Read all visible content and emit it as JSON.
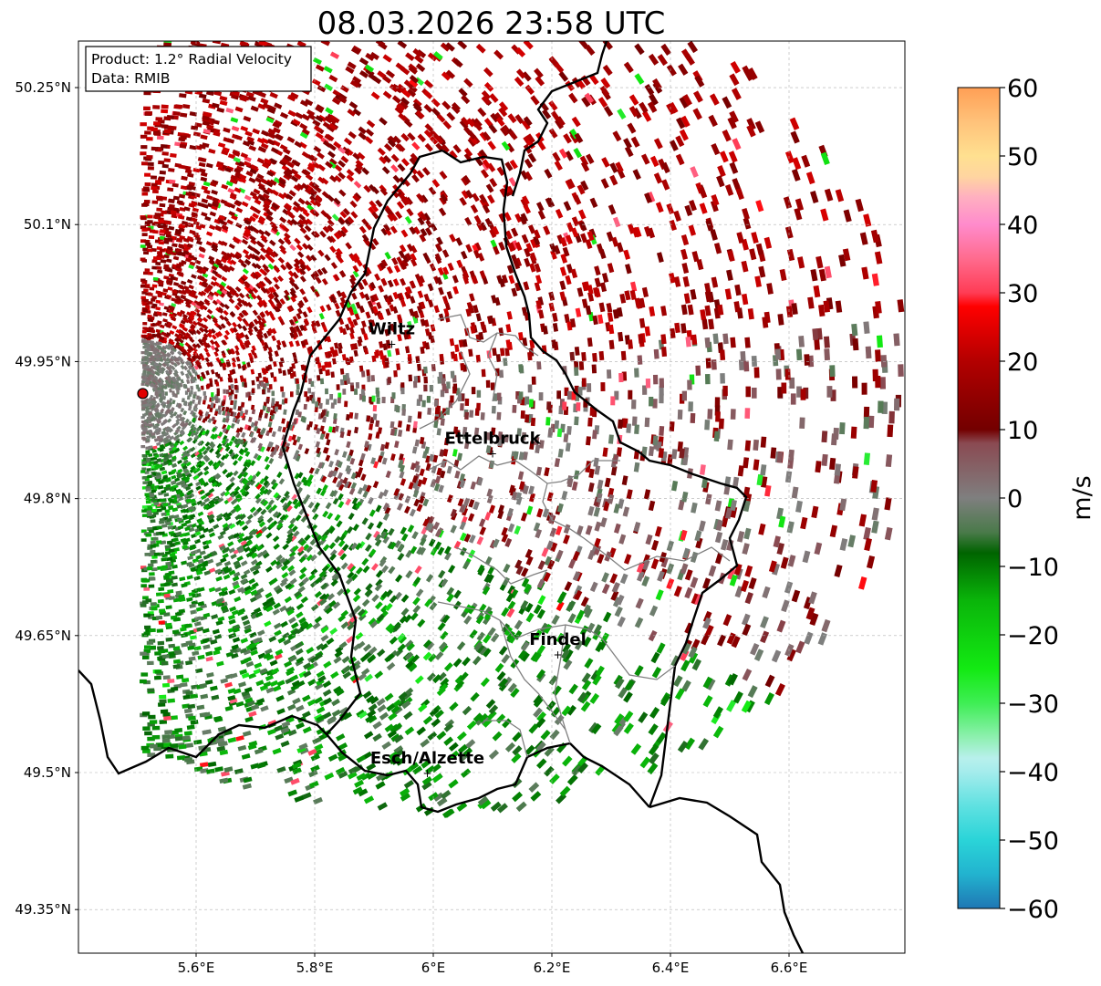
{
  "title": "08.03.2026 23:58 UTC",
  "info_box": {
    "product": "Product: 1.2° Radial Velocity",
    "data_source": "Data: RMIB"
  },
  "latitude_ticks": [
    "50.25°N",
    "50.1°N",
    "49.95°N",
    "49.8°N",
    "49.65°N",
    "49.5°N",
    "49.35°N"
  ],
  "longitude_ticks": [
    "5.6°E",
    "5.8°E",
    "6°E",
    "6.2°E",
    "6.4°E",
    "6.6°E"
  ],
  "cities": [
    {
      "name": "Wiltz",
      "lon": 5.93,
      "lat": 49.97
    },
    {
      "name": "Ettelbruck",
      "lon": 6.1,
      "lat": 49.85
    },
    {
      "name": "Findel",
      "lon": 6.21,
      "lat": 49.63
    },
    {
      "name": "Esch/Alzette",
      "lon": 5.99,
      "lat": 49.5
    }
  ],
  "radar_site": {
    "lon": 5.51,
    "lat": 49.915,
    "color": "#e00000"
  },
  "colorbar": {
    "unit": "m/s",
    "min": -60,
    "max": 60,
    "tick_labels": [
      "60",
      "50",
      "40",
      "30",
      "20",
      "10",
      "0",
      "−10",
      "−20",
      "−30",
      "−40",
      "−50",
      "−60"
    ],
    "stops": [
      {
        "value": -60,
        "color": "#1f77b4"
      },
      {
        "value": -55,
        "color": "#22b3cf"
      },
      {
        "value": -50,
        "color": "#2ad4d8"
      },
      {
        "value": -45,
        "color": "#5fe1e1"
      },
      {
        "value": -40,
        "color": "#a5ecec"
      },
      {
        "value": -38,
        "color": "#b8f0ec"
      },
      {
        "value": -35,
        "color": "#8ef0b0"
      },
      {
        "value": -30,
        "color": "#3fee55"
      },
      {
        "value": -25,
        "color": "#13ea13"
      },
      {
        "value": -15,
        "color": "#0ab50a"
      },
      {
        "value": -8,
        "color": "#006400"
      },
      {
        "value": -5,
        "color": "#4a7a4a"
      },
      {
        "value": 0,
        "color": "#7f7f7f"
      },
      {
        "value": 8,
        "color": "#8a4a52"
      },
      {
        "value": 10,
        "color": "#730000"
      },
      {
        "value": 20,
        "color": "#b30000"
      },
      {
        "value": 28,
        "color": "#ff0000"
      },
      {
        "value": 30,
        "color": "#ff3c55"
      },
      {
        "value": 35,
        "color": "#ff6b8e"
      },
      {
        "value": 40,
        "color": "#ff8bcc"
      },
      {
        "value": 44,
        "color": "#ffb0c0"
      },
      {
        "value": 47,
        "color": "#ffd5a0"
      },
      {
        "value": 50,
        "color": "#ffe090"
      },
      {
        "value": 55,
        "color": "#ffc27a"
      },
      {
        "value": 60,
        "color": "#ff9f55"
      }
    ]
  },
  "colors": {
    "border_national": "#000000",
    "border_canton": "#808080",
    "grid": "#b0b0b0"
  }
}
